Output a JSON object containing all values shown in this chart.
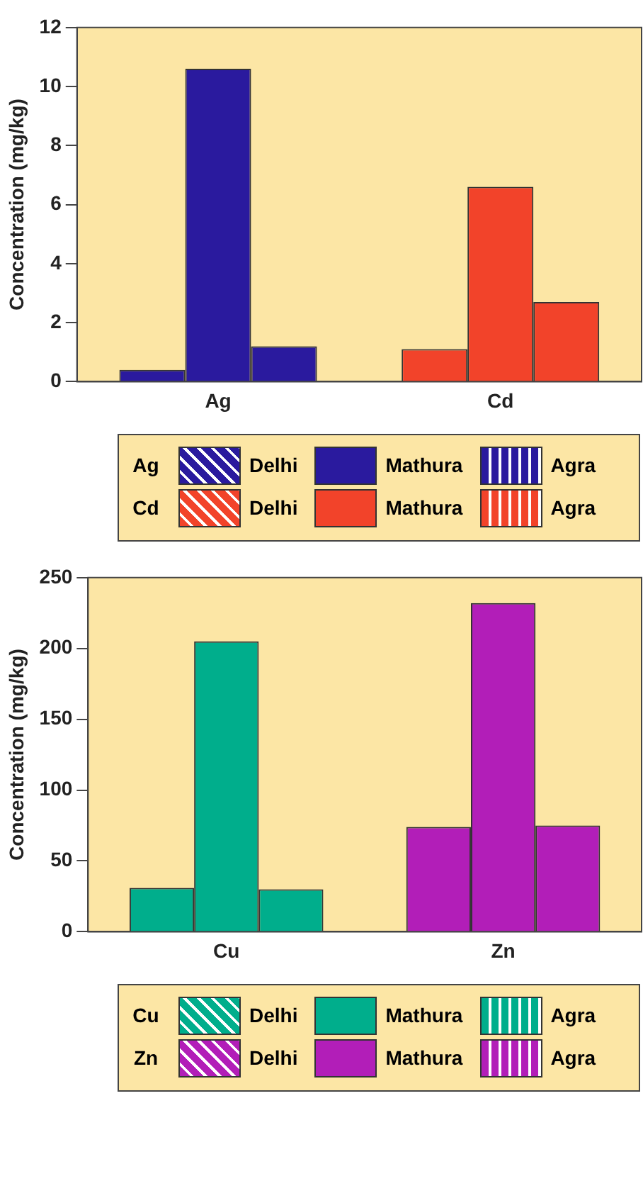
{
  "chart_data": [
    {
      "type": "bar",
      "ylabel": "Concentration (mg/kg)",
      "categories": [
        "Ag",
        "Cd"
      ],
      "ylim": [
        0,
        12
      ],
      "yticks": [
        0,
        2,
        4,
        6,
        8,
        10,
        12
      ],
      "grid": false,
      "legend": "bottom",
      "series": [
        {
          "name": "Delhi",
          "colors": [
            "#2a1a9e",
            "#f2432a"
          ],
          "values": [
            0.4,
            1.1
          ]
        },
        {
          "name": "Mathura",
          "colors": [
            "#2a1a9e",
            "#f2432a"
          ],
          "values": [
            10.6,
            6.6
          ]
        },
        {
          "name": "Agra",
          "colors": [
            "#2a1a9e",
            "#f2432a"
          ],
          "values": [
            1.2,
            2.7
          ]
        }
      ]
    },
    {
      "type": "bar",
      "ylabel": "Concentration (mg/kg)",
      "categories": [
        "Cu",
        "Zn"
      ],
      "ylim": [
        0,
        250
      ],
      "yticks": [
        0,
        50,
        100,
        150,
        200,
        250
      ],
      "grid": false,
      "legend": "bottom",
      "series": [
        {
          "name": "Delhi",
          "colors": [
            "#00ae8c",
            "#b21eb8"
          ],
          "values": [
            31,
            74
          ]
        },
        {
          "name": "Mathura",
          "colors": [
            "#00ae8c",
            "#b21eb8"
          ],
          "values": [
            205,
            232
          ]
        },
        {
          "name": "Agra",
          "colors": [
            "#00ae8c",
            "#b21eb8"
          ],
          "values": [
            30,
            75
          ]
        }
      ]
    }
  ]
}
